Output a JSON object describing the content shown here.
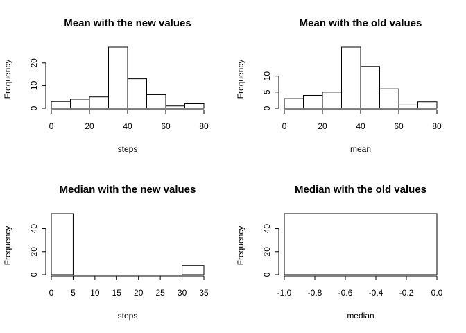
{
  "chart_data": [
    {
      "type": "histogram",
      "title": "Mean with the new values",
      "x_label": "steps",
      "y_label": "Frequency",
      "bins": [
        0,
        10,
        20,
        30,
        40,
        50,
        60,
        70,
        80
      ],
      "counts": [
        3,
        4,
        5,
        27,
        13,
        6,
        1,
        2
      ],
      "xlim": [
        0,
        80
      ],
      "ylim": [
        0,
        27
      ],
      "xticks": [
        0,
        20,
        40,
        60,
        80
      ],
      "yticks": [
        0,
        10,
        20
      ]
    },
    {
      "type": "histogram",
      "title": "Mean with the old values",
      "x_label": "mean",
      "y_label": "Frequency",
      "bins": [
        0,
        10,
        20,
        30,
        40,
        50,
        60,
        70,
        80
      ],
      "counts": [
        3,
        4,
        5,
        19,
        13,
        6,
        1,
        2
      ],
      "xlim": [
        0,
        80
      ],
      "ylim": [
        0,
        19
      ],
      "xticks": [
        0,
        20,
        40,
        60,
        80
      ],
      "yticks": [
        0,
        5,
        10
      ]
    },
    {
      "type": "histogram",
      "title": "Median with the new values",
      "x_label": "steps",
      "y_label": "Frequency",
      "bins": [
        0,
        5,
        10,
        15,
        20,
        25,
        30,
        35
      ],
      "counts": [
        53,
        0,
        0,
        0,
        0,
        0,
        8
      ],
      "xlim": [
        0,
        35
      ],
      "ylim": [
        0,
        53
      ],
      "xticks": [
        0,
        5,
        10,
        15,
        20,
        25,
        30,
        35
      ],
      "yticks": [
        0,
        20,
        40
      ]
    },
    {
      "type": "histogram",
      "title": "Median with the old values",
      "x_label": "median",
      "y_label": "Frequency",
      "bins": [
        -1,
        0
      ],
      "counts": [
        53
      ],
      "xlim": [
        -1,
        0
      ],
      "ylim": [
        0,
        53
      ],
      "xticks": [
        {
          "value": -1,
          "label": "-1.0"
        },
        {
          "value": -0.8,
          "label": "-0.8"
        },
        {
          "value": -0.6,
          "label": "-0.6"
        },
        {
          "value": -0.4,
          "label": "-0.4"
        },
        {
          "value": -0.2,
          "label": "-0.2"
        },
        {
          "value": 0,
          "label": "0.0"
        }
      ],
      "yticks": [
        0,
        20,
        40
      ]
    }
  ]
}
